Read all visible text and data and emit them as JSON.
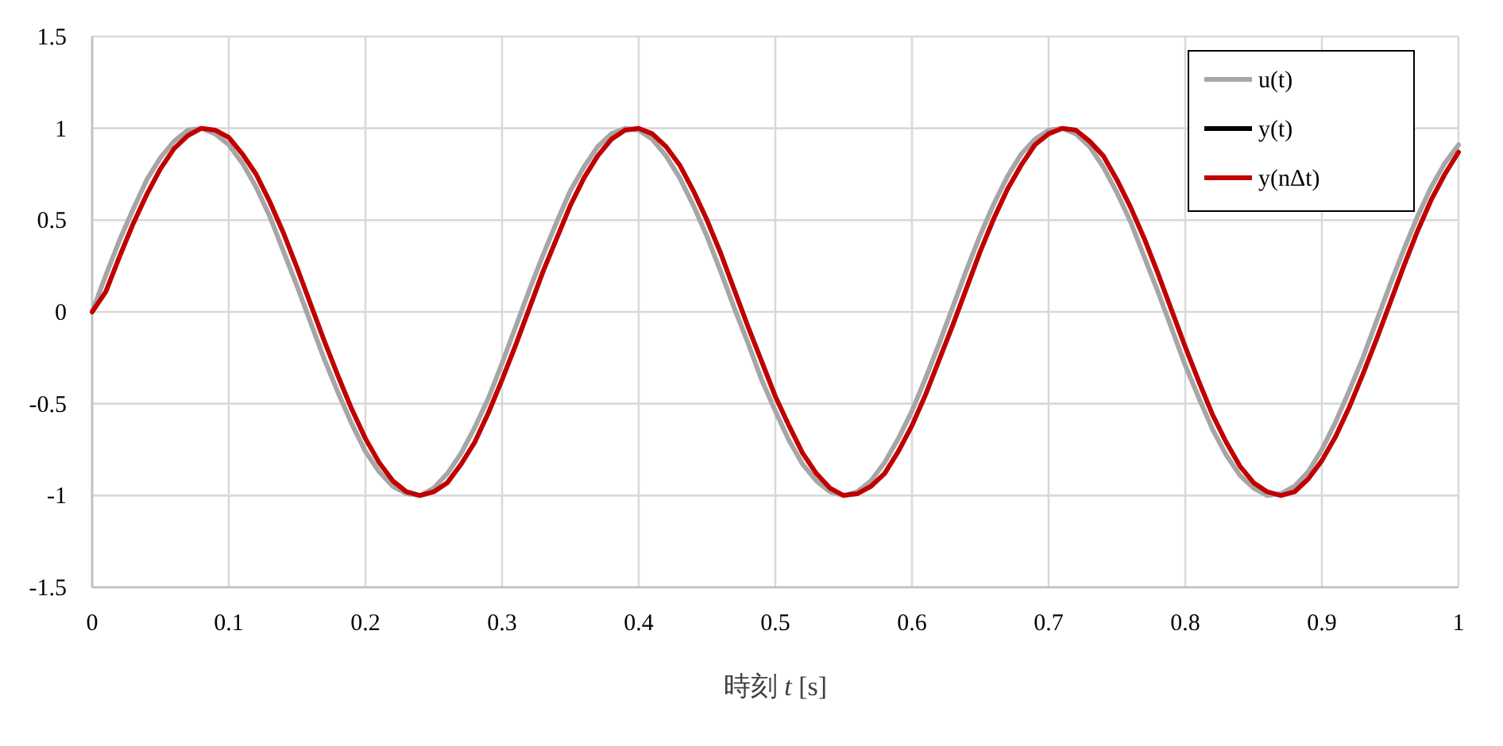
{
  "chart_data": {
    "type": "line",
    "xlabel": "時刻 *t* [s]",
    "x": [
      0,
      0.01,
      0.02,
      0.03,
      0.04,
      0.05,
      0.06,
      0.07,
      0.08,
      0.09,
      0.1,
      0.11,
      0.12,
      0.13,
      0.14,
      0.15,
      0.16,
      0.17,
      0.18,
      0.19,
      0.2,
      0.21,
      0.22,
      0.23,
      0.24,
      0.25,
      0.26,
      0.27,
      0.28,
      0.29,
      0.3,
      0.31,
      0.32,
      0.33,
      0.34,
      0.35,
      0.36,
      0.37,
      0.38,
      0.39,
      0.4,
      0.41,
      0.42,
      0.43,
      0.44,
      0.45,
      0.46,
      0.47,
      0.48,
      0.49,
      0.5,
      0.51,
      0.52,
      0.53,
      0.54,
      0.55,
      0.56,
      0.57,
      0.58,
      0.59,
      0.6,
      0.61,
      0.62,
      0.63,
      0.64,
      0.65,
      0.66,
      0.67,
      0.68,
      0.69,
      0.7,
      0.71,
      0.72,
      0.73,
      0.74,
      0.75,
      0.76,
      0.77,
      0.78,
      0.79,
      0.8,
      0.81,
      0.82,
      0.83,
      0.84,
      0.85,
      0.86,
      0.87,
      0.88,
      0.89,
      0.9,
      0.91,
      0.92,
      0.93,
      0.94,
      0.95,
      0.96,
      0.97,
      0.98,
      0.99,
      1
    ],
    "series": [
      {
        "name": "u(t)",
        "color": "#a6a6a6",
        "values": [
          0,
          0.2,
          0.39,
          0.56,
          0.72,
          0.84,
          0.93,
          0.99,
          1.0,
          0.97,
          0.91,
          0.81,
          0.68,
          0.52,
          0.33,
          0.14,
          -0.06,
          -0.26,
          -0.44,
          -0.61,
          -0.76,
          -0.87,
          -0.95,
          -0.99,
          -1.0,
          -0.96,
          -0.88,
          -0.77,
          -0.63,
          -0.47,
          -0.28,
          -0.08,
          0.12,
          0.31,
          0.49,
          0.66,
          0.79,
          0.9,
          0.97,
          1.0,
          0.99,
          0.94,
          0.85,
          0.73,
          0.58,
          0.41,
          0.22,
          0.02,
          -0.17,
          -0.37,
          -0.54,
          -0.7,
          -0.83,
          -0.92,
          -0.98,
          -1.0,
          -0.98,
          -0.92,
          -0.82,
          -0.69,
          -0.54,
          -0.36,
          -0.17,
          0.03,
          0.23,
          0.42,
          0.59,
          0.74,
          0.86,
          0.94,
          0.99,
          1.0,
          0.97,
          0.9,
          0.79,
          0.65,
          0.49,
          0.3,
          0.11,
          -0.09,
          -0.29,
          -0.47,
          -0.64,
          -0.78,
          -0.89,
          -0.96,
          -1.0,
          -0.99,
          -0.95,
          -0.87,
          -0.75,
          -0.6,
          -0.43,
          -0.25,
          -0.05,
          0.15,
          0.34,
          0.52,
          0.68,
          0.81,
          0.91
        ]
      },
      {
        "name": "y(t)",
        "color": "#000000",
        "values": [
          null,
          null,
          null,
          null,
          null,
          null,
          null,
          null,
          null,
          null,
          null,
          null,
          null,
          null,
          null,
          null,
          null,
          null,
          null,
          null,
          null,
          null,
          null,
          null,
          null,
          null,
          null,
          null,
          null,
          null,
          null,
          null,
          null,
          null,
          null,
          null,
          null,
          null,
          null,
          null,
          null,
          null,
          null,
          null,
          null,
          null,
          null,
          null,
          null,
          null,
          null,
          null,
          null,
          null,
          null,
          null,
          null,
          null,
          null,
          null,
          null,
          null,
          null,
          null,
          null,
          null,
          null,
          null,
          null,
          null,
          null,
          null,
          null,
          null,
          null,
          null,
          null,
          null,
          null,
          null,
          null,
          null,
          null,
          null,
          null,
          null,
          null,
          null,
          null,
          null,
          null,
          null,
          null,
          null,
          null,
          null,
          null,
          null,
          null,
          null,
          null
        ]
      },
      {
        "name": "y(nΔt)",
        "color": "#c00000",
        "values": [
          0,
          0.11,
          0.3,
          0.48,
          0.64,
          0.78,
          0.89,
          0.96,
          1.0,
          0.99,
          0.95,
          0.86,
          0.75,
          0.6,
          0.43,
          0.24,
          0.04,
          -0.16,
          -0.35,
          -0.53,
          -0.69,
          -0.82,
          -0.92,
          -0.98,
          -1.0,
          -0.98,
          -0.93,
          -0.83,
          -0.71,
          -0.55,
          -0.37,
          -0.18,
          0.02,
          0.22,
          0.4,
          0.58,
          0.73,
          0.85,
          0.94,
          0.99,
          1.0,
          0.97,
          0.9,
          0.8,
          0.66,
          0.5,
          0.32,
          0.12,
          -0.08,
          -0.27,
          -0.46,
          -0.62,
          -0.77,
          -0.88,
          -0.96,
          -1.0,
          -0.99,
          -0.95,
          -0.88,
          -0.76,
          -0.62,
          -0.45,
          -0.26,
          -0.07,
          0.13,
          0.33,
          0.51,
          0.67,
          0.8,
          0.91,
          0.97,
          1.0,
          0.99,
          0.93,
          0.85,
          0.72,
          0.57,
          0.4,
          0.21,
          0.01,
          -0.19,
          -0.38,
          -0.56,
          -0.71,
          -0.84,
          -0.93,
          -0.98,
          -1.0,
          -0.98,
          -0.91,
          -0.81,
          -0.68,
          -0.52,
          -0.34,
          -0.15,
          0.05,
          0.25,
          0.44,
          0.61,
          0.75,
          0.87
        ]
      }
    ],
    "xlim": [
      0,
      1
    ],
    "ylim": [
      -1.5,
      1.5
    ],
    "xticks": [
      0,
      0.1,
      0.2,
      0.3,
      0.4,
      0.5,
      0.6,
      0.7,
      0.8,
      0.9,
      1
    ],
    "yticks": [
      -1.5,
      -1,
      -0.5,
      0,
      0.5,
      1,
      1.5
    ],
    "grid": true,
    "legend": "top right",
    "marker": "none",
    "line_style": "solid"
  }
}
